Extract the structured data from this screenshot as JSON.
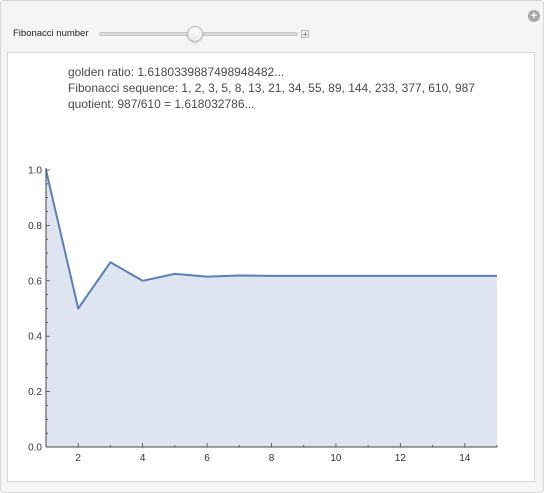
{
  "control": {
    "label": "Fibonacci number",
    "slider_min": 1,
    "slider_max": 30,
    "slider_value": 15
  },
  "info": {
    "golden_ratio": "golden ratio: 1.6180339887498948482...",
    "sequence": "Fibonacci sequence: 1, 2, 3, 5, 8, 13, 21, 34, 55, 89, 144, 233, 377, 610, 987",
    "quotient": "quotient: 987/610 =  1.618032786..."
  },
  "colors": {
    "line": "#5a7fb8",
    "fill": "#dfe5f0",
    "axis": "#444444"
  },
  "chart_data": {
    "type": "area",
    "x": [
      1,
      2,
      3,
      4,
      5,
      6,
      7,
      8,
      9,
      10,
      11,
      12,
      13,
      14,
      15
    ],
    "values": [
      1.0,
      0.5,
      0.667,
      0.6,
      0.625,
      0.615,
      0.619,
      0.618,
      0.618,
      0.618,
      0.618,
      0.618,
      0.618,
      0.618,
      0.618
    ],
    "xlim": [
      1,
      15
    ],
    "ylim": [
      0,
      1.0
    ],
    "x_ticks": [
      2,
      4,
      6,
      8,
      10,
      12,
      14
    ],
    "x_tick_labels": [
      "2",
      "4",
      "6",
      "8",
      "10",
      "12",
      "14"
    ],
    "y_ticks": [
      0,
      0.2,
      0.4,
      0.6,
      0.8,
      1.0
    ],
    "y_tick_labels": [
      "0.0",
      "0.2",
      "0.4",
      "0.6",
      "0.8",
      "1.0"
    ],
    "title": "",
    "xlabel": "",
    "ylabel": "",
    "grid": false
  }
}
